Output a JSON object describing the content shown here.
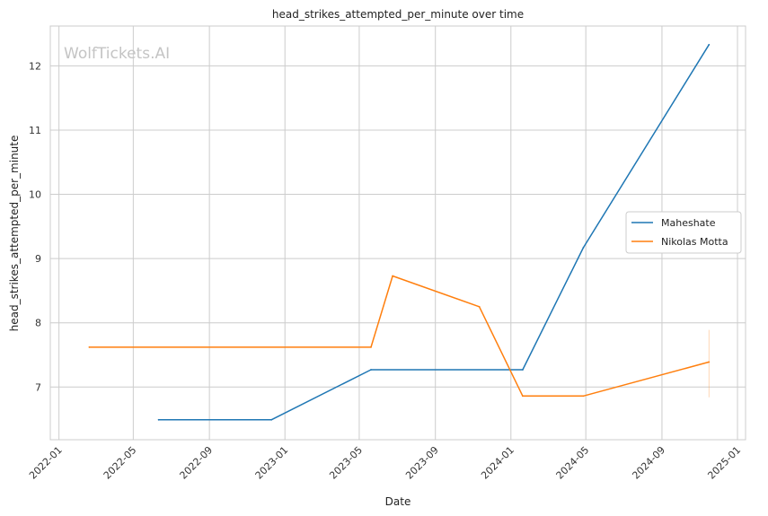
{
  "watermark": "WolfTickets.AI",
  "chart_data": {
    "type": "line",
    "title": "head_strikes_attempted_per_minute over time",
    "xlabel": "Date",
    "ylabel": "head_strikes_attempted_per_minute",
    "xlim": [
      "2021-12-18",
      "2025-01-14"
    ],
    "ylim": [
      6.18,
      12.62
    ],
    "x_ticks": [
      "2022-01",
      "2022-05",
      "2022-09",
      "2023-01",
      "2023-05",
      "2023-09",
      "2024-01",
      "2024-05",
      "2024-09",
      "2025-01"
    ],
    "y_ticks": [
      7,
      8,
      9,
      10,
      11,
      12
    ],
    "grid": true,
    "legend_position": "center-right",
    "series": [
      {
        "name": "Maheshate",
        "color": "#1f77b4",
        "points": [
          {
            "x": "2022-06-11",
            "y": 6.49
          },
          {
            "x": "2022-12-10",
            "y": 6.49
          },
          {
            "x": "2023-05-20",
            "y": 7.27
          },
          {
            "x": "2024-01-20",
            "y": 7.27
          },
          {
            "x": "2024-04-27",
            "y": 9.17
          },
          {
            "x": "2024-11-16",
            "y": 12.33
          }
        ]
      },
      {
        "name": "Nikolas Motta",
        "color": "#ff7f0e",
        "points": [
          {
            "x": "2022-02-19",
            "y": 7.62
          },
          {
            "x": "2023-05-20",
            "y": 7.62
          },
          {
            "x": "2023-06-24",
            "y": 8.73
          },
          {
            "x": "2023-11-11",
            "y": 8.25
          },
          {
            "x": "2024-01-20",
            "y": 6.86
          },
          {
            "x": "2024-04-27",
            "y": 6.86
          },
          {
            "x": "2024-11-16",
            "y": 7.39
          }
        ]
      }
    ]
  }
}
